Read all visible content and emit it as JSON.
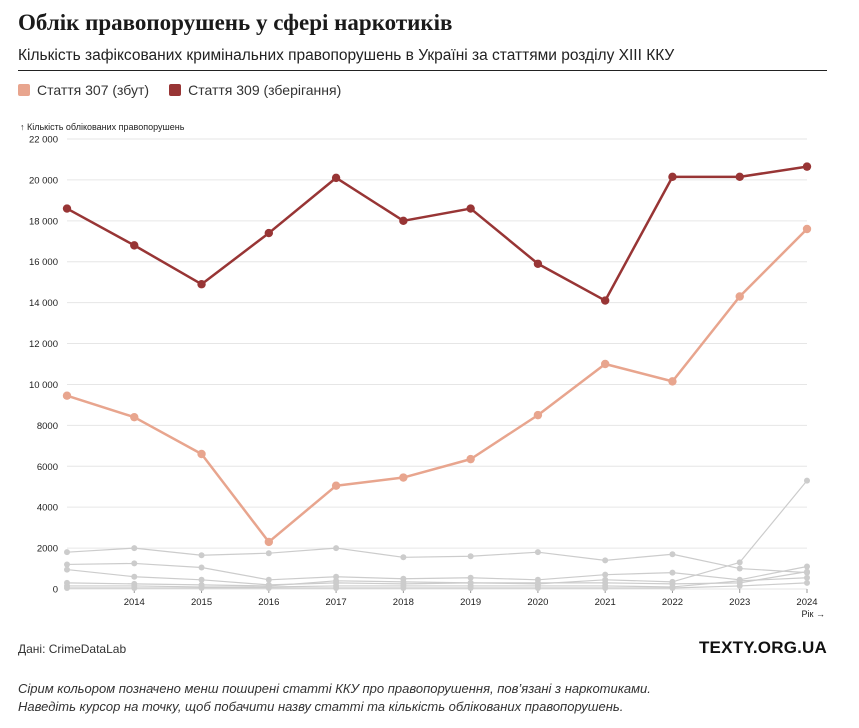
{
  "header": {
    "title": "Облік правопорушень у сфері наркотиків",
    "subtitle": "Кількість зафіксованих кримінальних правопорушень в Україні за статтями розділу XIII ККУ"
  },
  "legend": {
    "items": [
      {
        "label": "Стаття 307 (збут)",
        "color": "#E8A58E"
      },
      {
        "label": "Стаття 309 (зберігання)",
        "color": "#983535"
      }
    ]
  },
  "chart_data": {
    "type": "line",
    "title": "Облік правопорушень у сфері наркотиків",
    "ylabel": "↑ Кількість облікованих правопорушень",
    "xlabel": "Рік →",
    "x": [
      2013,
      2014,
      2015,
      2016,
      2017,
      2018,
      2019,
      2020,
      2021,
      2022,
      2023,
      2024
    ],
    "xticks": [
      "2014",
      "2015",
      "2016",
      "2017",
      "2018",
      "2019",
      "2020",
      "2021",
      "2022",
      "2023",
      "2024"
    ],
    "ylim": [
      0,
      22000
    ],
    "yticks": [
      "0",
      "2000",
      "4000",
      "6000",
      "8000",
      "10 000",
      "12 000",
      "14 000",
      "16 000",
      "18 000",
      "20 000",
      "22 000"
    ],
    "grid": true,
    "series": [
      {
        "name": "Стаття 309 (зберігання)",
        "color": "#983535",
        "highlight": true,
        "values": [
          18600,
          16800,
          14900,
          17400,
          20100,
          18000,
          18600,
          15900,
          14100,
          20150,
          20150,
          20650
        ]
      },
      {
        "name": "Стаття 307 (збут)",
        "color": "#E8A58E",
        "highlight": true,
        "values": [
          9450,
          8400,
          6600,
          2300,
          5050,
          5450,
          6350,
          8500,
          11000,
          10150,
          14300,
          17600
        ]
      },
      {
        "name": "other-1",
        "color": "#cccccc",
        "highlight": false,
        "values": [
          1800,
          2000,
          1650,
          1750,
          2000,
          1550,
          1600,
          1800,
          1400,
          1700,
          1000,
          800
        ]
      },
      {
        "name": "other-2",
        "color": "#cccccc",
        "highlight": false,
        "values": [
          1200,
          1250,
          1050,
          450,
          600,
          500,
          550,
          450,
          700,
          800,
          450,
          1100
        ]
      },
      {
        "name": "other-3",
        "color": "#cccccc",
        "highlight": false,
        "values": [
          950,
          600,
          450,
          200,
          300,
          250,
          300,
          250,
          450,
          350,
          1300,
          5300
        ]
      },
      {
        "name": "other-4",
        "color": "#cccccc",
        "highlight": false,
        "values": [
          300,
          250,
          200,
          150,
          400,
          350,
          300,
          300,
          300,
          250,
          300,
          850
        ]
      },
      {
        "name": "other-5",
        "color": "#cccccc",
        "highlight": false,
        "values": [
          150,
          150,
          100,
          100,
          150,
          150,
          150,
          150,
          150,
          100,
          400,
          550
        ]
      },
      {
        "name": "other-6",
        "color": "#cccccc",
        "highlight": false,
        "values": [
          50,
          50,
          50,
          50,
          50,
          50,
          50,
          50,
          50,
          50,
          150,
          300
        ]
      }
    ]
  },
  "footer": {
    "source": "Дані: CrimeDataLab",
    "brand": "TEXTY.ORG.UA",
    "note_line1": "Сірим кольором позначено менш поширені статті ККУ про правопорушення, пов’язані з наркотиками.",
    "note_line2": "Наведіть курсор на точку, щоб побачити назву статті та кількість облікованих правопорушень."
  }
}
